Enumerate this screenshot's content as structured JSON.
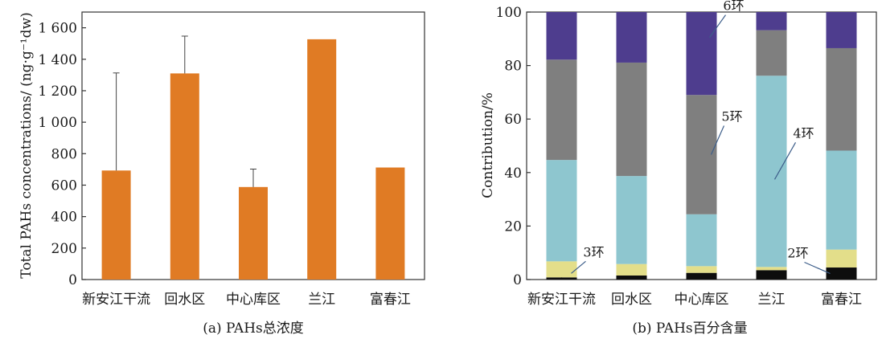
{
  "chart_data": [
    {
      "type": "bar",
      "caption": "(a) PAHs总浓度",
      "ylabel": "Total PAHs concentrations/ (ng·g⁻¹dw)",
      "categories": [
        "新安江干流",
        "回水区",
        "中心库区",
        "兰江",
        "富春江"
      ],
      "values": [
        693,
        1310,
        588,
        1527,
        712
      ],
      "error_upper": [
        1313,
        1547,
        702,
        null,
        null
      ],
      "ylim": [
        0,
        1700
      ],
      "yticks": [
        0,
        200,
        400,
        600,
        800,
        1000,
        1200,
        1400,
        1600
      ],
      "ytick_labels": [
        "0",
        "200",
        "400",
        "600",
        "800",
        "1 000",
        "1 200",
        "1 400",
        "1 600"
      ],
      "bar_color": "#e07b24",
      "grid": false
    },
    {
      "type": "bar",
      "stacked": true,
      "caption": "(b) PAHs百分含量",
      "ylabel": "Contribution/%",
      "categories": [
        "新安江干流",
        "回水区",
        "中心库区",
        "兰江",
        "富春江"
      ],
      "ylim": [
        0,
        100
      ],
      "yticks": [
        0,
        20,
        40,
        60,
        80,
        100
      ],
      "ytick_labels": [
        "0",
        "20",
        "40",
        "60",
        "80",
        "100"
      ],
      "series": [
        {
          "name": "2环",
          "color": "#0d0d0d",
          "values": [
            0.8,
            1.5,
            2.5,
            3.5,
            4.5
          ]
        },
        {
          "name": "3环",
          "color": "#e3de8a",
          "values": [
            6.0,
            4.3,
            2.5,
            1.2,
            6.7
          ]
        },
        {
          "name": "4环",
          "color": "#8ec6cf",
          "values": [
            37.9,
            32.9,
            19.4,
            71.5,
            37.0
          ]
        },
        {
          "name": "5环",
          "color": "#7f7f7f",
          "values": [
            37.5,
            42.4,
            44.6,
            17.0,
            38.3
          ]
        },
        {
          "name": "6环",
          "color": "#4e3d8e",
          "values": [
            17.8,
            18.9,
            31.0,
            6.8,
            13.5
          ]
        }
      ],
      "annotations": [
        {
          "text": "6环",
          "series": 4,
          "category": 2
        },
        {
          "text": "5环",
          "series": 3,
          "category": 2
        },
        {
          "text": "4环",
          "series": 2,
          "category": 3
        },
        {
          "text": "3环",
          "series": 1,
          "category": 0
        },
        {
          "text": "2环",
          "series": 0,
          "category": 4
        }
      ],
      "grid": false
    }
  ]
}
